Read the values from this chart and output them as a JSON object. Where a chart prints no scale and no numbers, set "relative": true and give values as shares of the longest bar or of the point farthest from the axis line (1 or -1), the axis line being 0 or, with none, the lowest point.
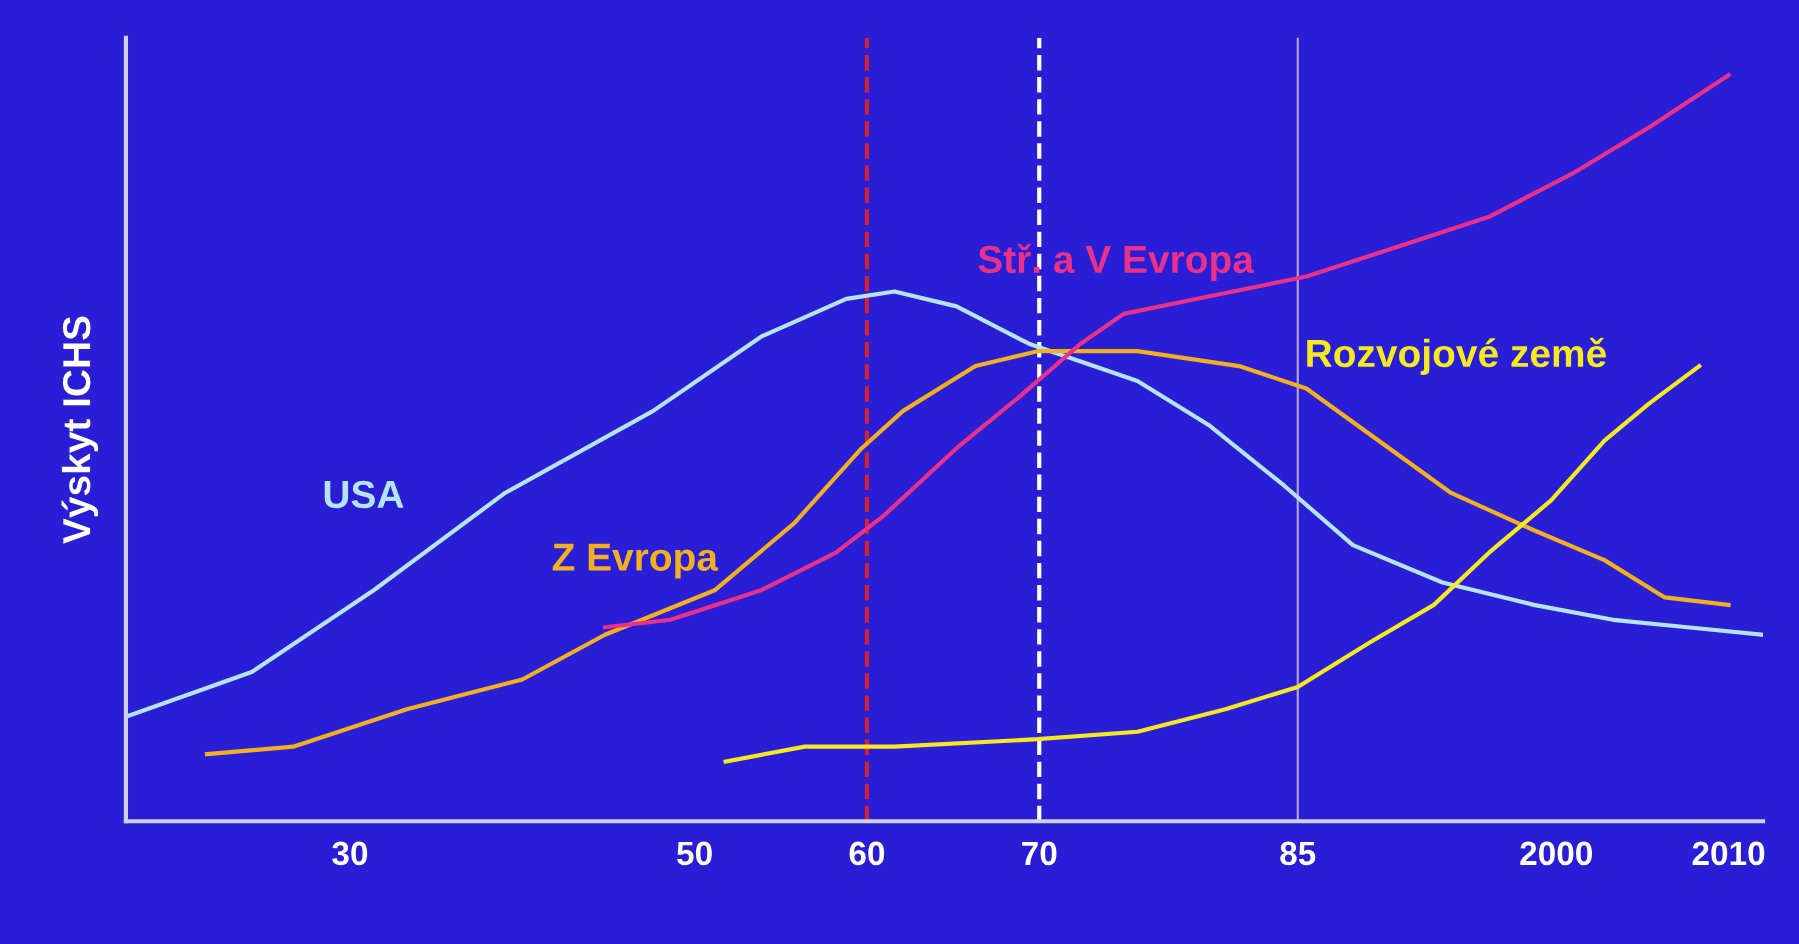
{
  "chart_data": {
    "type": "line",
    "relative": true,
    "ylabel": "Výskyt ICHS",
    "xlim": [
      1917,
      2012
    ],
    "xticks": [
      {
        "value": 1930,
        "label": "30"
      },
      {
        "value": 1950,
        "label": "50"
      },
      {
        "value": 1960,
        "label": "60"
      },
      {
        "value": 1970,
        "label": "70"
      },
      {
        "value": 1985,
        "label": "85"
      },
      {
        "value": 2000,
        "label": "2000"
      },
      {
        "value": 2010,
        "label": "2010"
      }
    ],
    "grid": false,
    "legend": false,
    "marker": "none",
    "line_style": "solid",
    "series": [
      {
        "name": "USA",
        "color": "#b4e4f7",
        "x": [
          1917.0,
          1924.3,
          1931.4,
          1939.0,
          1947.6,
          1953.9,
          1958.8,
          1961.6,
          1965.2,
          1969.4,
          1975.7,
          1979.9,
          1984.2,
          1988.2,
          1993.4,
          1998.7,
          2003.3,
          2007.6,
          2012.0
        ],
        "values": [
          0.14,
          0.2,
          0.31,
          0.44,
          0.55,
          0.65,
          0.7,
          0.71,
          0.69,
          0.64,
          0.59,
          0.53,
          0.45,
          0.37,
          0.32,
          0.29,
          0.27,
          0.26,
          0.25
        ]
      },
      {
        "name": "Z Evropa",
        "color": "#f0b020",
        "x": [
          1921.7,
          1926.7,
          1933.3,
          1940.0,
          1944.8,
          1951.2,
          1955.8,
          1959.7,
          1962.1,
          1966.3,
          1969.9,
          1975.7,
          1981.6,
          1985.5,
          1989.7,
          1993.9,
          1998.7,
          2002.8,
          2006.3,
          2010.0
        ],
        "values": [
          0.09,
          0.1,
          0.15,
          0.19,
          0.25,
          0.31,
          0.4,
          0.5,
          0.55,
          0.61,
          0.63,
          0.63,
          0.61,
          0.58,
          0.51,
          0.44,
          0.39,
          0.35,
          0.3,
          0.29
        ]
      },
      {
        "name": "Stř. a V Evropa",
        "color": "#e8328a",
        "x": [
          1944.8,
          1948.6,
          1953.9,
          1958.2,
          1961.0,
          1965.2,
          1968.9,
          1972.4,
          1974.9,
          1979.1,
          1985.5,
          1990.8,
          1996.1,
          2001.1,
          2005.4,
          2010.0
        ],
        "values": [
          0.26,
          0.27,
          0.31,
          0.36,
          0.41,
          0.5,
          0.57,
          0.64,
          0.68,
          0.7,
          0.73,
          0.77,
          0.81,
          0.87,
          0.93,
          1.0
        ]
      },
      {
        "name": "Rozvojové země",
        "color": "#f5ea20",
        "x": [
          1951.8,
          1956.4,
          1961.6,
          1969.9,
          1975.7,
          1980.8,
          1985.0,
          1989.2,
          1992.9,
          1996.1,
          1999.7,
          2002.8,
          2005.4,
          2008.3
        ],
        "values": [
          0.08,
          0.1,
          0.1,
          0.11,
          0.12,
          0.15,
          0.18,
          0.24,
          0.29,
          0.36,
          0.43,
          0.51,
          0.56,
          0.61
        ]
      }
    ],
    "ref_lines": [
      {
        "axis": "x",
        "value": 1960,
        "color": "#d42030",
        "line_style": "dashed"
      },
      {
        "axis": "x",
        "value": 1970,
        "color": "#ffffff",
        "line_style": "dashed"
      },
      {
        "axis": "x",
        "value": 1985,
        "color": "#b8a8e8",
        "line_style": "solid"
      }
    ]
  }
}
